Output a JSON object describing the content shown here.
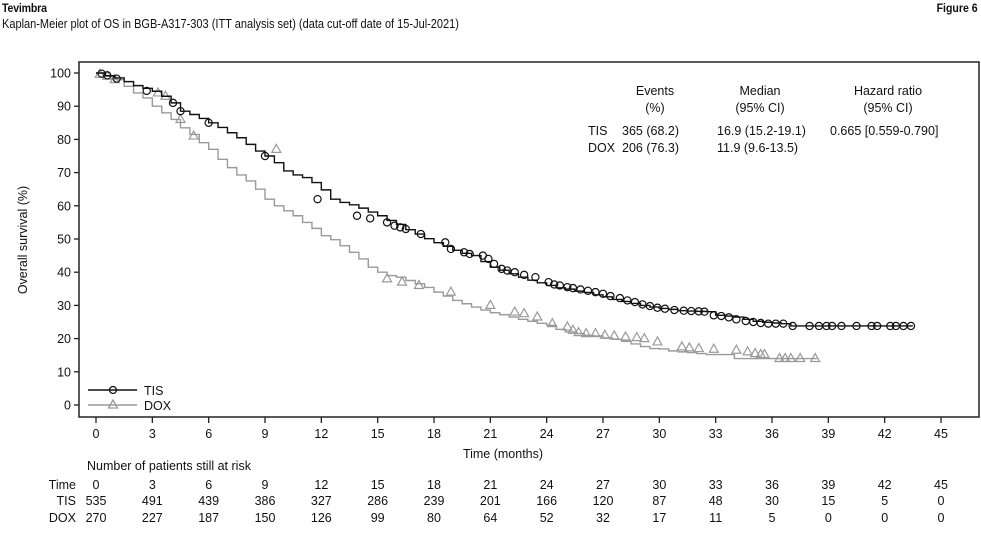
{
  "header": {
    "brand": "Tevimbra",
    "figure_label": "Figure 6",
    "title": "Kaplan-Meier plot of OS in BGB-A317-303 (ITT analysis set) (data cut-off date of 15-Jul-2021)"
  },
  "chart_data": {
    "type": "line",
    "subtype": "kaplan-meier",
    "title": "Kaplan-Meier plot of OS in BGB-A317-303 (ITT analysis set) (data cut-off date of 15-Jul-2021)",
    "xlabel": "Time (months)",
    "ylabel": "Overall survival (%)",
    "xlim": [
      0,
      45
    ],
    "ylim": [
      0,
      100
    ],
    "xticks": [
      0,
      3,
      6,
      9,
      12,
      15,
      18,
      21,
      24,
      27,
      30,
      33,
      36,
      39,
      42,
      45
    ],
    "yticks": [
      0,
      10,
      20,
      30,
      40,
      50,
      60,
      70,
      80,
      90,
      100
    ],
    "grid": false,
    "legend": {
      "position": "bottom-left",
      "entries": [
        "TIS",
        "DOX"
      ]
    },
    "series": [
      {
        "name": "TIS",
        "color": "#111111",
        "marker": "circle",
        "x": [
          0,
          0.5,
          1,
          1.5,
          2,
          2.5,
          3,
          3.5,
          4,
          4.5,
          5,
          5.5,
          6,
          6.5,
          7,
          7.5,
          8,
          8.5,
          9,
          9.5,
          10,
          10.5,
          11,
          11.5,
          12,
          12.5,
          13,
          13.5,
          14,
          14.5,
          15,
          15.5,
          16,
          16.5,
          17,
          17.5,
          18,
          18.5,
          19,
          19.5,
          20,
          20.5,
          21,
          21.5,
          22,
          22.5,
          23,
          23.5,
          24,
          24.5,
          25,
          25.5,
          26,
          26.5,
          27,
          27.5,
          28,
          28.5,
          29,
          29.5,
          30,
          30.5,
          31,
          31.5,
          32,
          32.5,
          33,
          33.5,
          34,
          34.5,
          35,
          35.5,
          36,
          36.5,
          37,
          38,
          39,
          40,
          41,
          42,
          43,
          43.5
        ],
        "y": [
          100,
          99.2,
          98.5,
          97.4,
          96.2,
          95.4,
          94.5,
          93,
          91,
          88.5,
          87.5,
          86.3,
          85,
          83.6,
          82,
          80.5,
          78.5,
          76.5,
          75,
          73,
          70.5,
          69.3,
          68.5,
          67,
          64.8,
          62,
          61,
          60.3,
          59.3,
          58.1,
          57,
          55.6,
          54.4,
          52.8,
          51.5,
          50.1,
          48.9,
          47.8,
          46.6,
          45.7,
          45,
          43.2,
          41.5,
          40.6,
          39.5,
          38.5,
          37.6,
          36.8,
          36,
          35.3,
          34.9,
          34.3,
          33.9,
          33.2,
          32.6,
          31.8,
          31.2,
          30.6,
          30,
          29.5,
          29.1,
          28.8,
          28.4,
          28.3,
          28.2,
          28.1,
          27,
          26.8,
          26.5,
          25.8,
          25.2,
          24.9,
          24.7,
          24.5,
          23.8,
          23.8,
          23.8,
          23.8,
          23.8,
          23.8,
          23.8,
          23.8
        ],
        "censored_x": [
          0.3,
          0.6,
          1.1,
          2.7,
          4.1,
          4.5,
          6,
          9,
          11.8,
          13.9,
          14.6,
          15.5,
          15.9,
          16.2,
          16.5,
          17.3,
          18.6,
          18.9,
          19.6,
          19.9,
          20.6,
          20.9,
          21.2,
          21.6,
          21.9,
          22.3,
          22.8,
          23.4,
          24.1,
          24.4,
          24.7,
          25.1,
          25.4,
          25.8,
          26.2,
          26.6,
          27,
          27.4,
          27.9,
          28.3,
          28.7,
          29.1,
          29.5,
          29.9,
          30.3,
          30.8,
          31.3,
          31.7,
          32.1,
          32.4,
          32.9,
          33.3,
          33.7,
          34.1,
          34.6,
          35,
          35.4,
          35.8,
          36.2,
          36.6,
          37.1,
          38,
          38.5,
          38.9,
          39.2,
          39.7,
          40.5,
          41.3,
          41.6,
          42.3,
          42.6,
          43,
          43.4
        ],
        "censored_y": [
          99.8,
          99.3,
          98.3,
          94.6,
          91,
          88.5,
          85,
          75,
          62,
          57,
          56.2,
          55,
          54,
          53.5,
          53,
          51.5,
          49,
          47,
          46,
          45.5,
          45,
          44,
          42.5,
          41,
          40.5,
          40,
          39.2,
          38.5,
          37,
          36.3,
          36,
          35.5,
          35.2,
          34.8,
          34.4,
          34,
          33.5,
          32.8,
          32.2,
          31.5,
          31,
          30.3,
          29.8,
          29.3,
          29,
          28.6,
          28.4,
          28.3,
          28.2,
          28.1,
          27,
          26.8,
          26.4,
          25.8,
          25.3,
          25,
          24.7,
          24.5,
          24.5,
          24.5,
          23.8,
          23.8,
          23.8,
          23.8,
          23.8,
          23.8,
          23.8,
          23.8,
          23.8,
          23.8,
          23.8,
          23.8,
          23.8
        ]
      },
      {
        "name": "DOX",
        "color": "#9a9a9a",
        "marker": "triangle",
        "x": [
          0,
          0.5,
          1,
          1.5,
          2,
          2.5,
          3,
          3.5,
          4,
          4.5,
          5,
          5.5,
          6,
          6.5,
          7,
          7.5,
          8,
          8.5,
          9,
          9.5,
          10,
          10.5,
          11,
          11.5,
          12,
          12.5,
          13,
          13.5,
          14,
          14.5,
          15,
          15.5,
          16,
          16.5,
          17,
          17.5,
          18,
          18.5,
          19,
          19.5,
          20,
          20.5,
          21,
          21.5,
          22,
          22.5,
          23,
          23.5,
          24,
          24.5,
          25,
          25.5,
          26,
          26.5,
          27,
          27.5,
          28,
          28.5,
          29,
          29.5,
          30,
          30.5,
          31,
          31.5,
          32,
          32.5,
          33,
          33.5,
          34,
          35,
          36,
          37,
          38,
          38.4
        ],
        "y": [
          100,
          99,
          98,
          96,
          94,
          92.5,
          90,
          88,
          86,
          83.5,
          81.5,
          79,
          77,
          74,
          71.5,
          69.3,
          67.5,
          65,
          62,
          60,
          58.5,
          57,
          55,
          53.2,
          51,
          49.8,
          48,
          46,
          44,
          41.5,
          40,
          39,
          38.5,
          37.5,
          36.5,
          35.4,
          34,
          32.8,
          31.5,
          30.5,
          29.5,
          28.6,
          27.8,
          27.2,
          26.5,
          25.8,
          25.2,
          24.6,
          24,
          22.8,
          22,
          21.5,
          21,
          20.8,
          20.2,
          19.8,
          19.2,
          18.4,
          17.6,
          17,
          16.9,
          16.3,
          16,
          15.8,
          15.5,
          15.2,
          15.2,
          15.2,
          14,
          14,
          14,
          14,
          14,
          14
        ]
      }
    ],
    "dox_censored_x": [
      0.2,
      0.6,
      1,
      3.3,
      3.7,
      4.5,
      5.2,
      9.6,
      15.5,
      16.3,
      17.2,
      18.9,
      21,
      22.3,
      22.8,
      23.5,
      24.3,
      25.1,
      25.4,
      25.7,
      26.1,
      26.6,
      27.1,
      27.6,
      28.2,
      28.8,
      29.2,
      29.9,
      31.2,
      31.6,
      32.1,
      32.9,
      34.1,
      34.7,
      35.1,
      35.4,
      35.6,
      36.4,
      36.7,
      37,
      37.5,
      38.3
    ],
    "dox_censored_y": [
      99.6,
      99,
      98,
      94,
      93,
      86,
      81,
      77,
      38,
      37,
      36,
      34,
      30,
      28,
      27.5,
      26.5,
      24.5,
      23.5,
      22.5,
      21.8,
      21.5,
      21.5,
      21,
      20.8,
      20.5,
      20.3,
      20,
      19,
      17.5,
      17.2,
      17,
      16.8,
      16.5,
      16,
      15.5,
      15.2,
      15.2,
      14,
      14,
      14,
      14,
      14
    ]
  },
  "stats_table": {
    "headers": [
      [
        "Events",
        "(%)"
      ],
      [
        "Median",
        "(95% CI)"
      ],
      [
        "Hazard ratio",
        "(95% CI)"
      ]
    ],
    "rows": [
      {
        "arm": "TIS",
        "events": "365 (68.2)",
        "median": "16.9 (15.2-19.1)",
        "hr": "0.665 [0.559-0.790]"
      },
      {
        "arm": "DOX",
        "events": "206 (76.3)",
        "median": "11.9 (9.6-13.5)",
        "hr": ""
      }
    ]
  },
  "risk_table": {
    "title": "Number of patients still at risk",
    "time_label": "Time",
    "times": [
      "0",
      "3",
      "6",
      "9",
      "12",
      "15",
      "18",
      "21",
      "24",
      "27",
      "30",
      "33",
      "36",
      "39",
      "42",
      "45"
    ],
    "rows": [
      {
        "arm": "TIS",
        "values": [
          "535",
          "491",
          "439",
          "386",
          "327",
          "286",
          "239",
          "201",
          "166",
          "120",
          "87",
          "48",
          "30",
          "15",
          "5",
          "0"
        ]
      },
      {
        "arm": "DOX",
        "values": [
          "270",
          "227",
          "187",
          "150",
          "126",
          "99",
          "80",
          "64",
          "52",
          "32",
          "17",
          "11",
          "5",
          "0",
          "0",
          "0"
        ]
      }
    ]
  }
}
